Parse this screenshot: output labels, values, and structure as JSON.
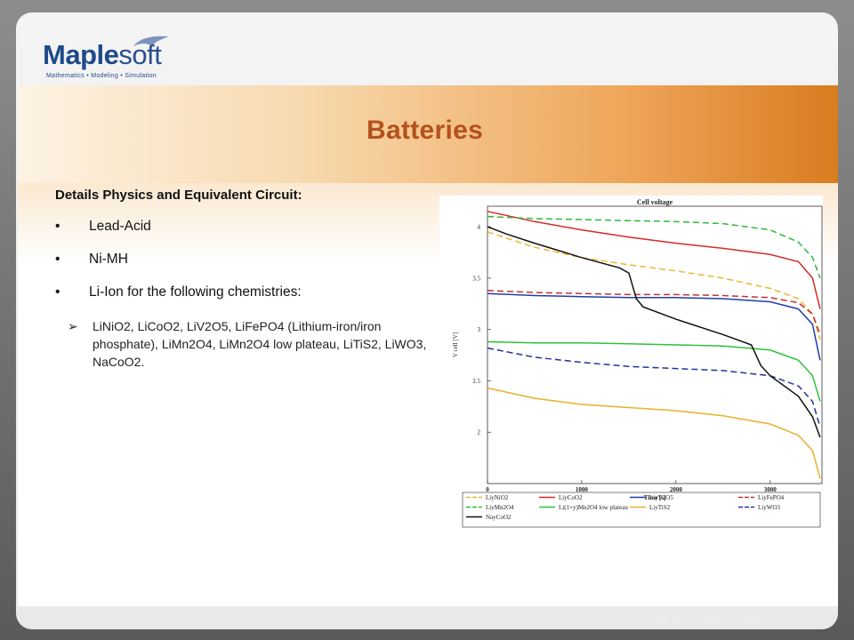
{
  "logo": {
    "name_a": "Maple",
    "name_b": "soft",
    "tagline": "Mathematics • Modeling • Simulation"
  },
  "slide": {
    "title": "Batteries",
    "heading": "Details Physics and Equivalent Circuit:",
    "bullets": [
      "Lead-Acid",
      "Ni-MH",
      "Li-Ion for the following chemistries:"
    ],
    "subbullet": "LiNiO2, LiCoO2, LiV2O5, LiFePO4 (Lithium-iron/iron phosphate), LiMn2O4, LiMn2O4 low plateau, LiTiS2, LiWO3, NaCoO2."
  },
  "footer": "© 2011 Maplesoft, a division of Waterloo Maple Inc.",
  "chart_data": {
    "type": "line",
    "title": "Cell voltage",
    "xlabel": "Time [s]",
    "ylabel": "V cell [V]",
    "xlim": [
      0,
      3550
    ],
    "ylim": [
      1.5,
      4.2
    ],
    "xticks": [
      0,
      1000,
      2000,
      3000
    ],
    "yticks": [
      2,
      2.5,
      3,
      3.5,
      4
    ],
    "grid": false,
    "legend_position": "bottom",
    "series": [
      {
        "name": "LiyNiO2",
        "color": "#e8b832",
        "dash": true,
        "points": [
          [
            0,
            3.95
          ],
          [
            500,
            3.8
          ],
          [
            1000,
            3.7
          ],
          [
            1500,
            3.63
          ],
          [
            2000,
            3.57
          ],
          [
            2500,
            3.5
          ],
          [
            3000,
            3.4
          ],
          [
            3300,
            3.3
          ],
          [
            3450,
            3.15
          ],
          [
            3530,
            2.9
          ]
        ]
      },
      {
        "name": "LiyCoO2",
        "color": "#d82828",
        "dash": false,
        "points": [
          [
            0,
            4.15
          ],
          [
            500,
            4.05
          ],
          [
            1000,
            3.97
          ],
          [
            1500,
            3.9
          ],
          [
            2000,
            3.84
          ],
          [
            2500,
            3.79
          ],
          [
            3000,
            3.73
          ],
          [
            3300,
            3.66
          ],
          [
            3450,
            3.5
          ],
          [
            3530,
            3.2
          ]
        ]
      },
      {
        "name": "LiyV2O5",
        "color": "#1f3fa6",
        "dash": false,
        "points": [
          [
            0,
            3.35
          ],
          [
            500,
            3.33
          ],
          [
            1000,
            3.32
          ],
          [
            1500,
            3.31
          ],
          [
            2000,
            3.31
          ],
          [
            2500,
            3.3
          ],
          [
            3000,
            3.27
          ],
          [
            3300,
            3.2
          ],
          [
            3450,
            3.05
          ],
          [
            3530,
            2.7
          ]
        ]
      },
      {
        "name": "LiyFePO4",
        "color": "#c83030",
        "dash": true,
        "points": [
          [
            0,
            3.38
          ],
          [
            500,
            3.36
          ],
          [
            1000,
            3.35
          ],
          [
            1500,
            3.34
          ],
          [
            2000,
            3.34
          ],
          [
            2500,
            3.33
          ],
          [
            3000,
            3.31
          ],
          [
            3300,
            3.26
          ],
          [
            3450,
            3.15
          ],
          [
            3530,
            2.95
          ]
        ]
      },
      {
        "name": "LiyMn2O4",
        "color": "#2cba3a",
        "dash": true,
        "points": [
          [
            0,
            4.1
          ],
          [
            500,
            4.08
          ],
          [
            1000,
            4.07
          ],
          [
            1500,
            4.06
          ],
          [
            2000,
            4.05
          ],
          [
            2500,
            4.03
          ],
          [
            3000,
            3.97
          ],
          [
            3300,
            3.85
          ],
          [
            3450,
            3.7
          ],
          [
            3530,
            3.5
          ]
        ]
      },
      {
        "name": "Li(1+y)Mn2O4 low plateau",
        "color": "#2cc33a",
        "dash": false,
        "points": [
          [
            0,
            2.88
          ],
          [
            500,
            2.87
          ],
          [
            1000,
            2.87
          ],
          [
            1500,
            2.86
          ],
          [
            2000,
            2.85
          ],
          [
            2500,
            2.84
          ],
          [
            3000,
            2.8
          ],
          [
            3300,
            2.7
          ],
          [
            3450,
            2.55
          ],
          [
            3530,
            2.3
          ]
        ]
      },
      {
        "name": "LiyTiS2",
        "color": "#e8b02a",
        "dash": false,
        "points": [
          [
            0,
            2.43
          ],
          [
            500,
            2.33
          ],
          [
            1000,
            2.27
          ],
          [
            1500,
            2.24
          ],
          [
            2000,
            2.21
          ],
          [
            2500,
            2.16
          ],
          [
            3000,
            2.08
          ],
          [
            3300,
            1.97
          ],
          [
            3450,
            1.82
          ],
          [
            3530,
            1.55
          ]
        ]
      },
      {
        "name": "LiyWO3",
        "color": "#23339c",
        "dash": true,
        "points": [
          [
            0,
            2.82
          ],
          [
            500,
            2.73
          ],
          [
            1000,
            2.68
          ],
          [
            1500,
            2.64
          ],
          [
            2000,
            2.62
          ],
          [
            2500,
            2.6
          ],
          [
            3000,
            2.55
          ],
          [
            3300,
            2.45
          ],
          [
            3450,
            2.3
          ],
          [
            3530,
            2.05
          ]
        ]
      },
      {
        "name": "NayCoO2",
        "color": "#111111",
        "dash": false,
        "points": [
          [
            0,
            4.0
          ],
          [
            200,
            3.93
          ],
          [
            500,
            3.84
          ],
          [
            1000,
            3.7
          ],
          [
            1400,
            3.6
          ],
          [
            1500,
            3.55
          ],
          [
            1580,
            3.3
          ],
          [
            1650,
            3.22
          ],
          [
            2000,
            3.1
          ],
          [
            2500,
            2.95
          ],
          [
            2800,
            2.85
          ],
          [
            2900,
            2.65
          ],
          [
            3000,
            2.55
          ],
          [
            3300,
            2.35
          ],
          [
            3450,
            2.15
          ],
          [
            3530,
            1.95
          ]
        ]
      }
    ]
  }
}
